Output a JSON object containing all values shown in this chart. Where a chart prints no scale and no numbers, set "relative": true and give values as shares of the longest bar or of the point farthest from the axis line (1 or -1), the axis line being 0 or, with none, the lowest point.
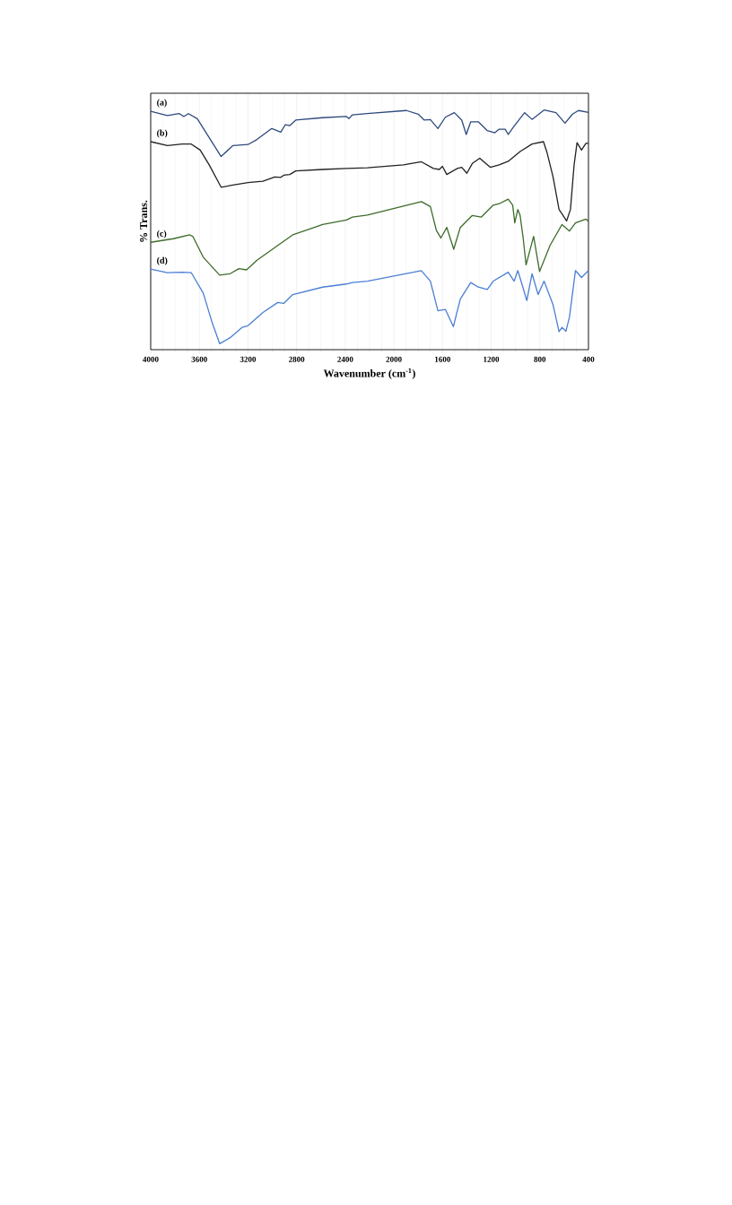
{
  "chart_data": {
    "type": "line",
    "relative": true,
    "xlabel": "Wavenumber (cm$^{-1}$)",
    "ylabel": "% Trans.",
    "xlim": [
      4000,
      400
    ],
    "xticks": [
      4000,
      3600,
      3200,
      2800,
      2400,
      2000,
      1600,
      1200,
      800,
      400
    ],
    "grid": "x",
    "marker": "none",
    "line_style": "solid",
    "series": [
      {
        "name": "(a)",
        "color": "#2e4a7d",
        "x": [
          4000,
          3863,
          3764,
          3728,
          3690,
          3617,
          3421,
          3323,
          3200,
          3126,
          3004,
          2930,
          2893,
          2856,
          2807,
          2586,
          2390,
          2370,
          2341,
          2218,
          1897,
          1800,
          1750,
          1700,
          1638,
          1577,
          1503,
          1442,
          1405,
          1368,
          1306,
          1232,
          1170,
          1134,
          1085,
          1060,
          1011,
          925,
          864,
          765,
          667,
          593,
          531,
          482,
          400
        ],
        "values": [
          0.995,
          0.977,
          0.985,
          0.973,
          0.985,
          0.964,
          0.806,
          0.852,
          0.856,
          0.877,
          0.923,
          0.908,
          0.939,
          0.935,
          0.958,
          0.968,
          0.973,
          0.964,
          0.98,
          0.985,
          0.998,
          0.983,
          0.958,
          0.96,
          0.923,
          0.97,
          0.989,
          0.958,
          0.898,
          0.951,
          0.951,
          0.914,
          0.905,
          0.92,
          0.92,
          0.898,
          0.933,
          0.989,
          0.961,
          1.0,
          0.989,
          0.945,
          0.983,
          0.998,
          0.99
        ]
      },
      {
        "name": "(b)",
        "color": "#222222",
        "x": [
          4000,
          3863,
          3740,
          3666,
          3593,
          3519,
          3421,
          3323,
          3200,
          3077,
          2979,
          2930,
          2906,
          2856,
          2807,
          2586,
          2390,
          2218,
          1921,
          1774,
          1675,
          1626,
          1601,
          1565,
          1478,
          1442,
          1400,
          1355,
          1294,
          1208,
          1134,
          1060,
          962,
          864,
          770,
          740,
          691,
          642,
          617,
          580,
          548,
          518,
          494,
          457,
          421,
          400
        ],
        "values": [
          0.868,
          0.852,
          0.858,
          0.858,
          0.833,
          0.771,
          0.678,
          0.687,
          0.697,
          0.703,
          0.721,
          0.719,
          0.728,
          0.731,
          0.746,
          0.752,
          0.756,
          0.759,
          0.771,
          0.784,
          0.756,
          0.752,
          0.765,
          0.731,
          0.756,
          0.761,
          0.736,
          0.777,
          0.799,
          0.761,
          0.771,
          0.786,
          0.827,
          0.858,
          0.868,
          0.821,
          0.721,
          0.585,
          0.566,
          0.537,
          0.585,
          0.771,
          0.864,
          0.833,
          0.861,
          0.861
        ]
      },
      {
        "name": "(c)",
        "color": "#3d6b2a",
        "x": [
          4000,
          3814,
          3679,
          3654,
          3568,
          3433,
          3347,
          3274,
          3212,
          3126,
          2955,
          2832,
          2586,
          2390,
          2341,
          2218,
          1774,
          1700,
          1651,
          1614,
          1565,
          1508,
          1454,
          1355,
          1282,
          1183,
          1134,
          1060,
          1023,
          1006,
          981,
          962,
          937,
          913,
          851,
          802,
          716,
          618,
          556,
          507,
          421,
          400
        ],
        "values": [
          0.448,
          0.463,
          0.479,
          0.473,
          0.386,
          0.311,
          0.317,
          0.338,
          0.333,
          0.373,
          0.435,
          0.479,
          0.522,
          0.541,
          0.553,
          0.562,
          0.618,
          0.597,
          0.498,
          0.466,
          0.51,
          0.419,
          0.51,
          0.56,
          0.553,
          0.603,
          0.609,
          0.628,
          0.603,
          0.529,
          0.585,
          0.56,
          0.466,
          0.354,
          0.473,
          0.326,
          0.435,
          0.522,
          0.495,
          0.529,
          0.545,
          0.535
        ]
      },
      {
        "name": "(d)",
        "color": "#4a7fd4",
        "x": [
          4000,
          3863,
          3740,
          3666,
          3568,
          3494,
          3433,
          3347,
          3249,
          3200,
          3077,
          2955,
          2906,
          2832,
          2586,
          2390,
          2341,
          2218,
          1774,
          1700,
          1638,
          1577,
          1511,
          1454,
          1368,
          1306,
          1232,
          1183,
          1060,
          1011,
          981,
          949,
          907,
          864,
          814,
          765,
          691,
          642,
          617,
          585,
          556,
          507,
          457,
          400
        ],
        "values": [
          0.336,
          0.321,
          0.323,
          0.321,
          0.236,
          0.112,
          0.025,
          0.05,
          0.093,
          0.1,
          0.155,
          0.197,
          0.193,
          0.23,
          0.261,
          0.274,
          0.28,
          0.286,
          0.33,
          0.286,
          0.162,
          0.168,
          0.096,
          0.211,
          0.28,
          0.261,
          0.251,
          0.286,
          0.323,
          0.286,
          0.33,
          0.277,
          0.205,
          0.317,
          0.23,
          0.286,
          0.187,
          0.075,
          0.093,
          0.077,
          0.137,
          0.33,
          0.301,
          0.33
        ]
      }
    ]
  }
}
